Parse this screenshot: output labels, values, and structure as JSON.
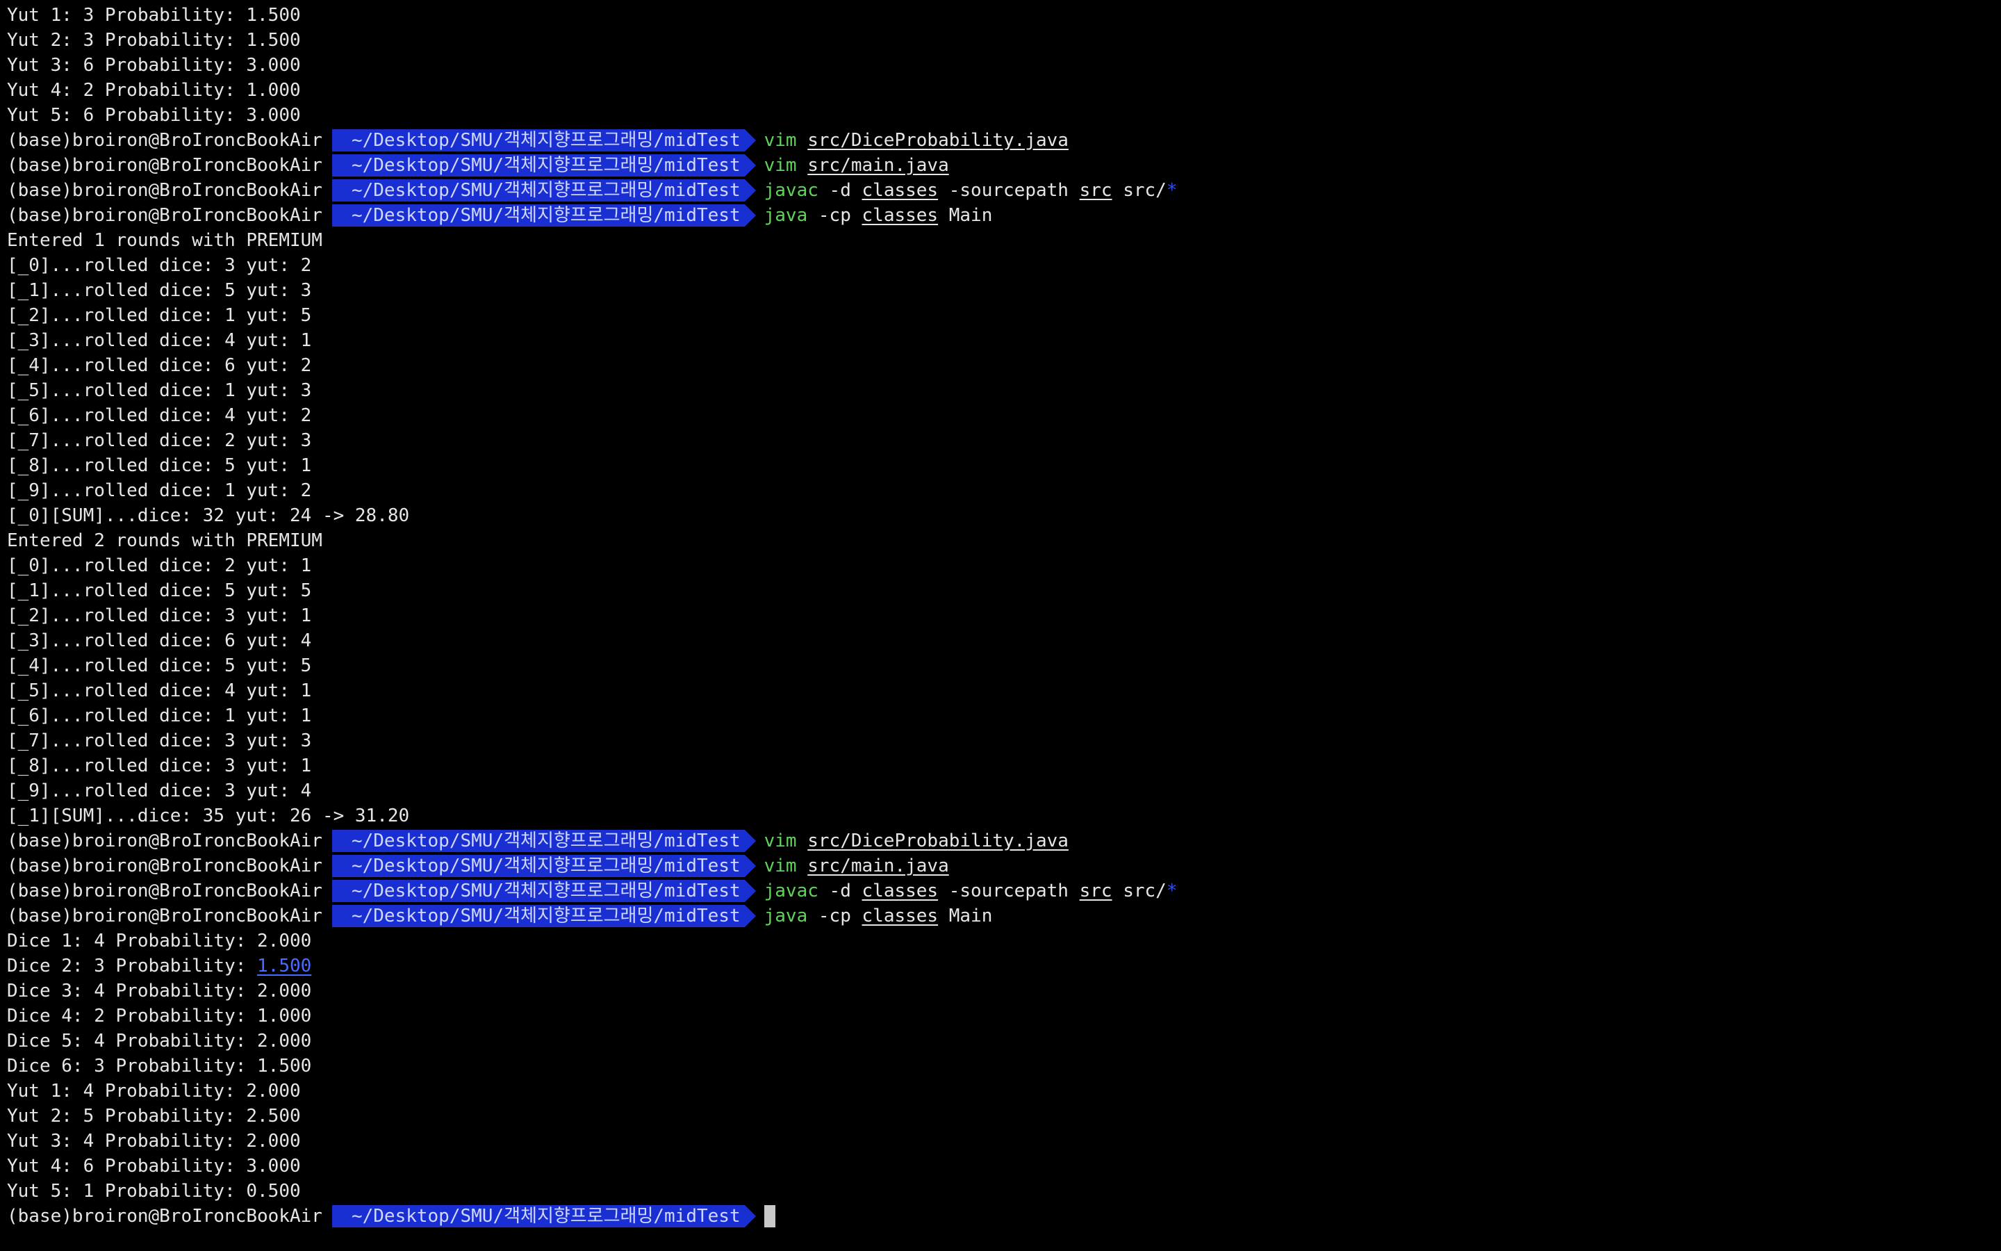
{
  "prompt": {
    "env": "(base)",
    "user": "broiron@BroIroncBookAir",
    "path": "~/Desktop/SMU/객체지향프로그래밍/midTest"
  },
  "lines": [
    {
      "type": "out",
      "text": "Yut 1: 3 Probability: 1.500"
    },
    {
      "type": "out",
      "text": "Yut 2: 3 Probability: 1.500"
    },
    {
      "type": "out",
      "text": "Yut 3: 6 Probability: 3.000"
    },
    {
      "type": "out",
      "text": "Yut 4: 2 Probability: 1.000"
    },
    {
      "type": "out",
      "text": "Yut 5: 6 Probability: 3.000"
    },
    {
      "type": "prompt",
      "cmd": [
        {
          "k": "cmd",
          "t": "vim"
        },
        {
          "k": "file",
          "t": "src/DiceProbability.java"
        }
      ]
    },
    {
      "type": "prompt",
      "cmd": [
        {
          "k": "cmd",
          "t": "vim"
        },
        {
          "k": "file",
          "t": "src/main.java"
        }
      ]
    },
    {
      "type": "prompt",
      "cmd": [
        {
          "k": "cmd",
          "t": "javac"
        },
        {
          "k": "arg",
          "t": "-d"
        },
        {
          "k": "file",
          "t": "classes"
        },
        {
          "k": "arg",
          "t": "-sourcepath"
        },
        {
          "k": "file",
          "t": "src"
        },
        {
          "k": "arg",
          "t": "src/"
        },
        {
          "k": "glob",
          "t": "*"
        }
      ]
    },
    {
      "type": "prompt",
      "cmd": [
        {
          "k": "cmd",
          "t": "java"
        },
        {
          "k": "arg",
          "t": "-cp"
        },
        {
          "k": "file",
          "t": "classes"
        },
        {
          "k": "arg",
          "t": "Main"
        }
      ]
    },
    {
      "type": "out",
      "text": "Entered 1 rounds with PREMIUM"
    },
    {
      "type": "out",
      "text": "[_0]...rolled dice: 3 yut: 2"
    },
    {
      "type": "out",
      "text": "[_1]...rolled dice: 5 yut: 3"
    },
    {
      "type": "out",
      "text": "[_2]...rolled dice: 1 yut: 5"
    },
    {
      "type": "out",
      "text": "[_3]...rolled dice: 4 yut: 1"
    },
    {
      "type": "out",
      "text": "[_4]...rolled dice: 6 yut: 2"
    },
    {
      "type": "out",
      "text": "[_5]...rolled dice: 1 yut: 3"
    },
    {
      "type": "out",
      "text": "[_6]...rolled dice: 4 yut: 2"
    },
    {
      "type": "out",
      "text": "[_7]...rolled dice: 2 yut: 3"
    },
    {
      "type": "out",
      "text": "[_8]...rolled dice: 5 yut: 1"
    },
    {
      "type": "out",
      "text": "[_9]...rolled dice: 1 yut: 2"
    },
    {
      "type": "out",
      "text": "[_0][SUM]...dice: 32 yut: 24 -> 28.80"
    },
    {
      "type": "out",
      "text": "Entered 2 rounds with PREMIUM"
    },
    {
      "type": "out",
      "text": "[_0]...rolled dice: 2 yut: 1"
    },
    {
      "type": "out",
      "text": "[_1]...rolled dice: 5 yut: 5"
    },
    {
      "type": "out",
      "text": "[_2]...rolled dice: 3 yut: 1"
    },
    {
      "type": "out",
      "text": "[_3]...rolled dice: 6 yut: 4"
    },
    {
      "type": "out",
      "text": "[_4]...rolled dice: 5 yut: 5"
    },
    {
      "type": "out",
      "text": "[_5]...rolled dice: 4 yut: 1"
    },
    {
      "type": "out",
      "text": "[_6]...rolled dice: 1 yut: 1"
    },
    {
      "type": "out",
      "text": "[_7]...rolled dice: 3 yut: 3"
    },
    {
      "type": "out",
      "text": "[_8]...rolled dice: 3 yut: 1"
    },
    {
      "type": "out",
      "text": "[_9]...rolled dice: 3 yut: 4"
    },
    {
      "type": "out",
      "text": "[_1][SUM]...dice: 35 yut: 26 -> 31.20"
    },
    {
      "type": "prompt",
      "cmd": [
        {
          "k": "cmd",
          "t": "vim"
        },
        {
          "k": "file",
          "t": "src/DiceProbability.java"
        }
      ]
    },
    {
      "type": "prompt",
      "cmd": [
        {
          "k": "cmd",
          "t": "vim"
        },
        {
          "k": "file",
          "t": "src/main.java"
        }
      ]
    },
    {
      "type": "prompt",
      "cmd": [
        {
          "k": "cmd",
          "t": "javac"
        },
        {
          "k": "arg",
          "t": "-d"
        },
        {
          "k": "file",
          "t": "classes"
        },
        {
          "k": "arg",
          "t": "-sourcepath"
        },
        {
          "k": "file",
          "t": "src"
        },
        {
          "k": "arg",
          "t": "src/"
        },
        {
          "k": "glob",
          "t": "*"
        }
      ]
    },
    {
      "type": "prompt",
      "cmd": [
        {
          "k": "cmd",
          "t": "java"
        },
        {
          "k": "arg",
          "t": "-cp"
        },
        {
          "k": "file",
          "t": "classes"
        },
        {
          "k": "arg",
          "t": "Main"
        }
      ]
    },
    {
      "type": "out",
      "text": "Dice 1: 4 Probability: 2.000"
    },
    {
      "type": "out_link",
      "pre": "Dice 2: 3 Probability: ",
      "link": "1.500"
    },
    {
      "type": "out",
      "text": "Dice 3: 4 Probability: 2.000"
    },
    {
      "type": "out",
      "text": "Dice 4: 2 Probability: 1.000"
    },
    {
      "type": "out",
      "text": "Dice 5: 4 Probability: 2.000"
    },
    {
      "type": "out",
      "text": "Dice 6: 3 Probability: 1.500"
    },
    {
      "type": "out",
      "text": "Yut 1: 4 Probability: 2.000"
    },
    {
      "type": "out",
      "text": "Yut 2: 5 Probability: 2.500"
    },
    {
      "type": "out",
      "text": "Yut 3: 4 Probability: 2.000"
    },
    {
      "type": "out",
      "text": "Yut 4: 6 Probability: 3.000"
    },
    {
      "type": "out",
      "text": "Yut 5: 1 Probability: 0.500"
    },
    {
      "type": "prompt_active",
      "cmd": []
    }
  ],
  "colors": {
    "background": "#000000",
    "text": "#e6e6e6",
    "prompt_path_bg": "#1a2fd1",
    "command": "#5fd35a",
    "glob": "#2f4bff",
    "link": "#4a6bff"
  }
}
